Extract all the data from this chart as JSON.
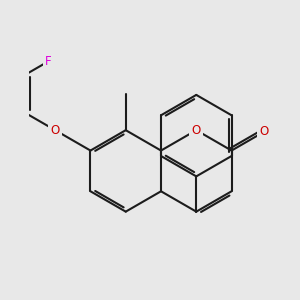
{
  "bg": "#e8e8e8",
  "bc": "#1c1c1c",
  "lw": 1.5,
  "dbl_sep": 0.012,
  "dbl_sh": 0.018,
  "fs": 8.5,
  "col_O": "#cc0000",
  "col_F": "#dd00dd",
  "R": 0.185,
  "xlim": [
    -0.08,
    1.02
  ],
  "ylim": [
    -0.45,
    0.9
  ]
}
